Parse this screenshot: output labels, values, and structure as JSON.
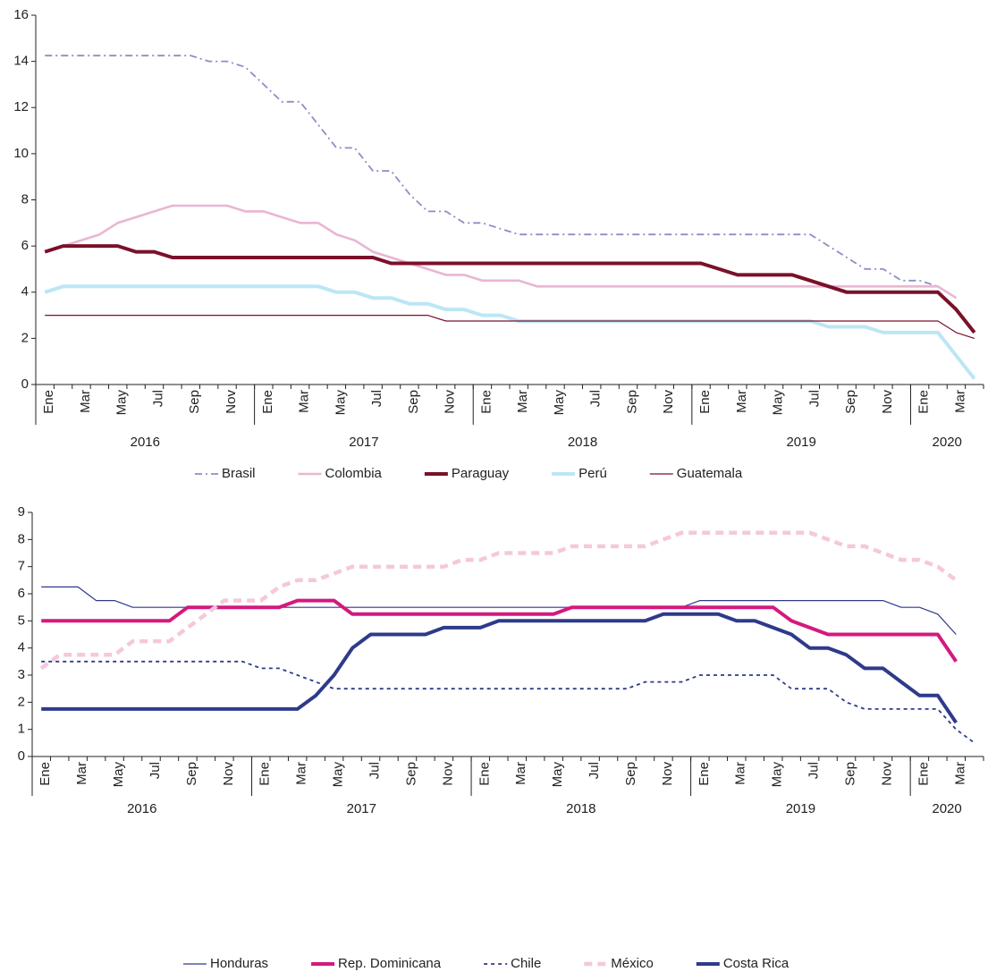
{
  "chart_data": [
    {
      "type": "line",
      "categories": [
        "Ene",
        null,
        "Mar",
        null,
        "May",
        null,
        "Jul",
        null,
        "Sep",
        null,
        "Nov",
        null,
        "Ene",
        null,
        "Mar",
        null,
        "May",
        null,
        "Jul",
        null,
        "Sep",
        null,
        "Nov",
        null,
        "Ene",
        null,
        "Mar",
        null,
        "May",
        null,
        "Jul",
        null,
        "Sep",
        null,
        "Nov",
        null,
        "Ene",
        null,
        "Mar",
        null,
        "May",
        null,
        "Jul",
        null,
        "Sep",
        null,
        "Nov",
        null,
        "Ene",
        null,
        "Mar",
        null
      ],
      "years": [
        "2016",
        "2017",
        "2018",
        "2019",
        "2020"
      ],
      "ylim": [
        0,
        16
      ],
      "yticks": [
        0,
        2,
        4,
        6,
        8,
        10,
        12,
        14,
        16
      ],
      "legend": "bottom",
      "series": [
        {
          "name": "Brasil",
          "color": "#8c8ec6",
          "line_style": "dash-dot",
          "values": [
            14.25,
            14.25,
            14.25,
            14.25,
            14.25,
            14.25,
            14.25,
            14.25,
            14.25,
            14,
            14,
            13.75,
            13,
            12.25,
            12.25,
            11.25,
            10.25,
            10.25,
            9.25,
            9.25,
            8.25,
            7.5,
            7.5,
            7,
            7,
            6.75,
            6.5,
            6.5,
            6.5,
            6.5,
            6.5,
            6.5,
            6.5,
            6.5,
            6.5,
            6.5,
            6.5,
            6.5,
            6.5,
            6.5,
            6.5,
            6.5,
            6.5,
            6,
            5.5,
            5,
            5,
            4.5,
            4.5,
            4.25,
            3.75,
            null
          ]
        },
        {
          "name": "Colombia",
          "color": "#e9b6d2",
          "line_style": "medium",
          "values": [
            5.75,
            6,
            6.25,
            6.5,
            7,
            7.25,
            7.5,
            7.75,
            7.75,
            7.75,
            7.75,
            7.5,
            7.5,
            7.25,
            7,
            7,
            6.5,
            6.25,
            5.75,
            5.5,
            5.25,
            5,
            4.75,
            4.75,
            4.5,
            4.5,
            4.5,
            4.25,
            4.25,
            4.25,
            4.25,
            4.25,
            4.25,
            4.25,
            4.25,
            4.25,
            4.25,
            4.25,
            4.25,
            4.25,
            4.25,
            4.25,
            4.25,
            4.25,
            4.25,
            4.25,
            4.25,
            4.25,
            4.25,
            4.25,
            3.75,
            null
          ]
        },
        {
          "name": "Paraguay",
          "color": "#7a1129",
          "line_style": "thick",
          "values": [
            5.75,
            6,
            6,
            6,
            6,
            5.75,
            5.75,
            5.5,
            5.5,
            5.5,
            5.5,
            5.5,
            5.5,
            5.5,
            5.5,
            5.5,
            5.5,
            5.5,
            5.5,
            5.25,
            5.25,
            5.25,
            5.25,
            5.25,
            5.25,
            5.25,
            5.25,
            5.25,
            5.25,
            5.25,
            5.25,
            5.25,
            5.25,
            5.25,
            5.25,
            5.25,
            5.25,
            5,
            4.75,
            4.75,
            4.75,
            4.75,
            4.5,
            4.25,
            4,
            4,
            4,
            4,
            4,
            4,
            3.25,
            2.25
          ]
        },
        {
          "name": "Perú",
          "color": "#bce6f5",
          "line_style": "thick",
          "values": [
            4,
            4.25,
            4.25,
            4.25,
            4.25,
            4.25,
            4.25,
            4.25,
            4.25,
            4.25,
            4.25,
            4.25,
            4.25,
            4.25,
            4.25,
            4.25,
            4,
            4,
            3.75,
            3.75,
            3.5,
            3.5,
            3.25,
            3.25,
            3,
            3,
            2.75,
            2.75,
            2.75,
            2.75,
            2.75,
            2.75,
            2.75,
            2.75,
            2.75,
            2.75,
            2.75,
            2.75,
            2.75,
            2.75,
            2.75,
            2.75,
            2.75,
            2.5,
            2.5,
            2.5,
            2.25,
            2.25,
            2.25,
            2.25,
            1.25,
            0.25
          ]
        },
        {
          "name": "Guatemala",
          "color": "#7a1129",
          "line_style": "thin",
          "values": [
            3,
            3,
            3,
            3,
            3,
            3,
            3,
            3,
            3,
            3,
            3,
            3,
            3,
            3,
            3,
            3,
            3,
            3,
            3,
            3,
            3,
            3,
            2.75,
            2.75,
            2.75,
            2.75,
            2.75,
            2.75,
            2.75,
            2.75,
            2.75,
            2.75,
            2.75,
            2.75,
            2.75,
            2.75,
            2.75,
            2.75,
            2.75,
            2.75,
            2.75,
            2.75,
            2.75,
            2.75,
            2.75,
            2.75,
            2.75,
            2.75,
            2.75,
            2.75,
            2.25,
            2
          ]
        }
      ]
    },
    {
      "type": "line",
      "categories": [
        "Ene",
        null,
        "Mar",
        null,
        "May",
        null,
        "Jul",
        null,
        "Sep",
        null,
        "Nov",
        null,
        "Ene",
        null,
        "Mar",
        null,
        "May",
        null,
        "Jul",
        null,
        "Sep",
        null,
        "Nov",
        null,
        "Ene",
        null,
        "Mar",
        null,
        "May",
        null,
        "Jul",
        null,
        "Sep",
        null,
        "Nov",
        null,
        "Ene",
        null,
        "Mar",
        null,
        "May",
        null,
        "Jul",
        null,
        "Sep",
        null,
        "Nov",
        null,
        "Ene",
        null,
        "Mar",
        null
      ],
      "years": [
        "2016",
        "2017",
        "2018",
        "2019",
        "2020"
      ],
      "ylim": [
        0,
        9
      ],
      "yticks": [
        0,
        1,
        2,
        3,
        4,
        5,
        6,
        7,
        8,
        9
      ],
      "legend": "bottom",
      "series": [
        {
          "name": "Honduras",
          "color": "#2e3a8a",
          "line_style": "thin",
          "values": [
            6.25,
            6.25,
            6.25,
            5.75,
            5.75,
            5.5,
            5.5,
            5.5,
            5.5,
            5.5,
            5.5,
            5.5,
            5.5,
            5.5,
            5.5,
            5.5,
            5.5,
            5.5,
            5.5,
            5.5,
            5.5,
            5.5,
            5.5,
            5.5,
            5.5,
            5.5,
            5.5,
            5.5,
            5.5,
            5.5,
            5.5,
            5.5,
            5.5,
            5.5,
            5.5,
            5.5,
            5.75,
            5.75,
            5.75,
            5.75,
            5.75,
            5.75,
            5.75,
            5.75,
            5.75,
            5.75,
            5.75,
            5.5,
            5.5,
            5.25,
            4.5,
            null
          ]
        },
        {
          "name": "Rep. Dominicana",
          "color": "#d4197e",
          "line_style": "thick",
          "values": [
            5,
            5,
            5,
            5,
            5,
            5,
            5,
            5,
            5.5,
            5.5,
            5.5,
            5.5,
            5.5,
            5.5,
            5.75,
            5.75,
            5.75,
            5.25,
            5.25,
            5.25,
            5.25,
            5.25,
            5.25,
            5.25,
            5.25,
            5.25,
            5.25,
            5.25,
            5.25,
            5.5,
            5.5,
            5.5,
            5.5,
            5.5,
            5.5,
            5.5,
            5.5,
            5.5,
            5.5,
            5.5,
            5.5,
            5,
            4.75,
            4.5,
            4.5,
            4.5,
            4.5,
            4.5,
            4.5,
            4.5,
            3.5,
            null
          ]
        },
        {
          "name": "Chile",
          "color": "#2e3a8a",
          "line_style": "dotted",
          "values": [
            3.5,
            3.5,
            3.5,
            3.5,
            3.5,
            3.5,
            3.5,
            3.5,
            3.5,
            3.5,
            3.5,
            3.5,
            3.25,
            3.25,
            3,
            2.75,
            2.5,
            2.5,
            2.5,
            2.5,
            2.5,
            2.5,
            2.5,
            2.5,
            2.5,
            2.5,
            2.5,
            2.5,
            2.5,
            2.5,
            2.5,
            2.5,
            2.5,
            2.75,
            2.75,
            2.75,
            3,
            3,
            3,
            3,
            3,
            2.5,
            2.5,
            2.5,
            2,
            1.75,
            1.75,
            1.75,
            1.75,
            1.75,
            1,
            0.5
          ]
        },
        {
          "name": "México",
          "color": "#f5c8dc",
          "line_style": "dashed",
          "values": [
            3.25,
            3.75,
            3.75,
            3.75,
            3.75,
            4.25,
            4.25,
            4.25,
            4.75,
            5.25,
            5.75,
            5.75,
            5.75,
            6.25,
            6.5,
            6.5,
            6.75,
            7,
            7,
            7,
            7,
            7,
            7,
            7.25,
            7.25,
            7.5,
            7.5,
            7.5,
            7.5,
            7.75,
            7.75,
            7.75,
            7.75,
            7.75,
            8,
            8.25,
            8.25,
            8.25,
            8.25,
            8.25,
            8.25,
            8.25,
            8.25,
            8,
            7.75,
            7.75,
            7.5,
            7.25,
            7.25,
            7,
            6.5,
            null
          ]
        },
        {
          "name": "Costa Rica",
          "color": "#2e3a8a",
          "line_style": "thick",
          "values": [
            1.75,
            1.75,
            1.75,
            1.75,
            1.75,
            1.75,
            1.75,
            1.75,
            1.75,
            1.75,
            1.75,
            1.75,
            1.75,
            1.75,
            1.75,
            2.25,
            3,
            4,
            4.5,
            4.5,
            4.5,
            4.5,
            4.75,
            4.75,
            4.75,
            5,
            5,
            5,
            5,
            5,
            5,
            5,
            5,
            5,
            5.25,
            5.25,
            5.25,
            5.25,
            5,
            5,
            4.75,
            4.5,
            4,
            4,
            3.75,
            3.25,
            3.25,
            2.75,
            2.25,
            2.25,
            1.25,
            null
          ]
        }
      ]
    }
  ]
}
